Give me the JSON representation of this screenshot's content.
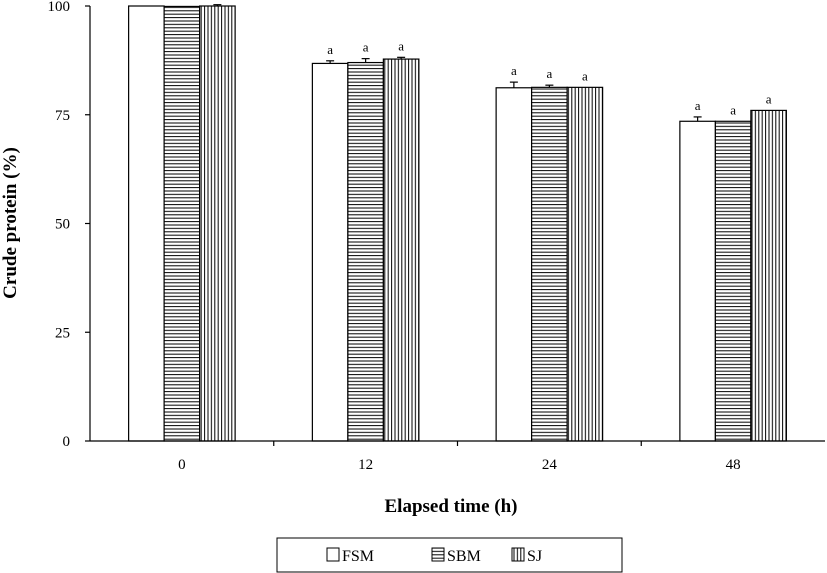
{
  "chart_data": {
    "type": "bar",
    "title": "",
    "xlabel": "Elapsed time (h)",
    "ylabel": "Crude protein (%)",
    "categories": [
      "0",
      "12",
      "24",
      "48"
    ],
    "ylim": [
      0,
      100
    ],
    "yticks": [
      0,
      25,
      50,
      75,
      100
    ],
    "grid": false,
    "legend_position": "bottom",
    "series": [
      {
        "name": "FSM",
        "pattern": "open",
        "values": [
          100,
          86.8,
          81.2,
          73.5
        ],
        "errors": [
          0,
          0.6,
          1.3,
          1.0
        ],
        "labels": [
          "",
          "a",
          "a",
          "a"
        ]
      },
      {
        "name": "SBM",
        "pattern": "horizontal-lines",
        "values": [
          99.9,
          87.0,
          81.3,
          73.5
        ],
        "errors": [
          0,
          0.9,
          0.5,
          0
        ],
        "labels": [
          "",
          "a",
          "a",
          "a"
        ]
      },
      {
        "name": "SJ",
        "pattern": "vertical-lines",
        "values": [
          100,
          87.8,
          81.3,
          76.0
        ],
        "errors": [
          0.3,
          0.4,
          0,
          0
        ],
        "labels": [
          "",
          "a",
          "a",
          "a"
        ]
      }
    ],
    "colors": {
      "stroke": "#000000",
      "fill": "#ffffff"
    }
  }
}
